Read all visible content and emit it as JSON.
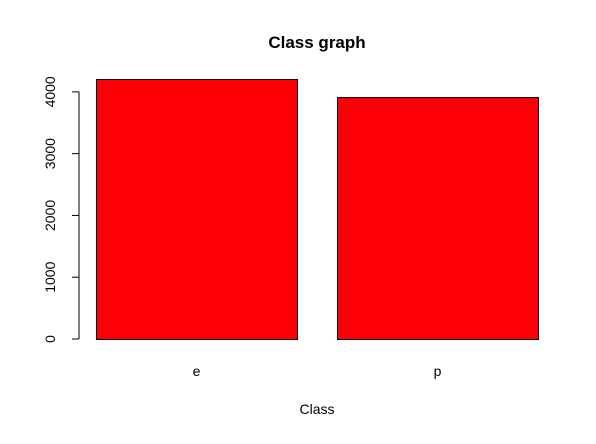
{
  "chart_data": {
    "type": "bar",
    "title": "Class graph",
    "xlabel": "Class",
    "ylabel": "",
    "categories": [
      "e",
      "p"
    ],
    "values": [
      4208,
      3916
    ],
    "ylim": [
      0,
      4208
    ],
    "yticks": [
      0,
      1000,
      2000,
      3000,
      4000
    ],
    "bar_color": "#fa0006",
    "bar_border_color": "#000000",
    "axis_color": "#000000",
    "grid": false
  }
}
